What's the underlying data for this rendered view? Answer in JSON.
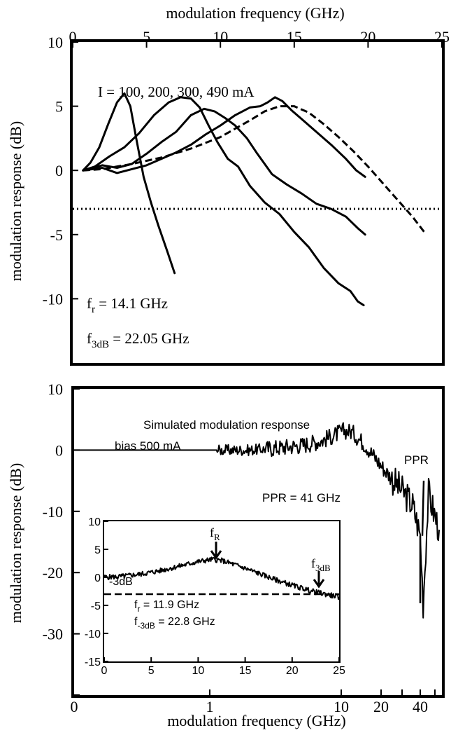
{
  "chart_data": [
    {
      "type": "line",
      "xlabel": "modulation frequency  (GHz)",
      "ylabel": "modulation response (dB)",
      "xlim": [
        0,
        25
      ],
      "ylim": [
        -15,
        10
      ],
      "x_ticks": [
        "0",
        "5",
        "10",
        "15",
        "20",
        "25"
      ],
      "y_ticks": [
        "10",
        "5",
        "0",
        "-5",
        "-10"
      ],
      "series_label": "I = 100, 200, 300, 490 mA",
      "annotations": {
        "fr_prefix": "f",
        "fr_sub": "r",
        "fr_value": " = 14.1 GHz",
        "f3db_prefix": "f",
        "f3db_sub": "3dB",
        "f3db_value": " = 22.05 GHz"
      },
      "reference_line_y": -3,
      "series": [
        {
          "style": "solid",
          "x": [
            0.7,
            1.2,
            1.8,
            2.4,
            3.0,
            3.5,
            3.9,
            4.3,
            4.8,
            5.3,
            5.8,
            6.4,
            6.9
          ],
          "y": [
            0,
            0.6,
            1.8,
            3.6,
            5.3,
            6.0,
            5.0,
            2.5,
            -0.5,
            -2.5,
            -4.3,
            -6.3,
            -8.0
          ]
        },
        {
          "style": "solid",
          "x": [
            0.7,
            1.5,
            2.5,
            3.5,
            4.5,
            5.5,
            6.5,
            7.3,
            8.0,
            8.6,
            9.2,
            9.8,
            10.5,
            11.2,
            12.0,
            13.0,
            14.0,
            15.0,
            16.0,
            17.0,
            18.0,
            18.8,
            19.3,
            19.7
          ],
          "y": [
            0,
            0.3,
            1.1,
            1.8,
            2.9,
            4.3,
            5.3,
            5.7,
            5.6,
            4.9,
            3.5,
            2.2,
            0.9,
            0.3,
            -1.2,
            -2.5,
            -3.4,
            -4.8,
            -6.0,
            -7.6,
            -8.8,
            -9.4,
            -10.2,
            -10.5
          ]
        },
        {
          "style": "solid",
          "x": [
            0.7,
            2.0,
            3.0,
            4.0,
            5.0,
            6.0,
            7.0,
            8.0,
            8.9,
            9.6,
            10.3,
            11.0,
            11.8,
            12.5,
            13.5,
            14.5,
            15.5,
            16.5,
            17.5,
            18.5,
            19.3,
            19.8
          ],
          "y": [
            0,
            0.4,
            0.2,
            0.5,
            1.3,
            2.2,
            3.0,
            4.3,
            4.8,
            4.6,
            4.1,
            3.5,
            2.5,
            1.3,
            -0.3,
            -1.1,
            -1.8,
            -2.6,
            -3.0,
            -3.6,
            -4.5,
            -5.0
          ]
        },
        {
          "style": "solid",
          "x": [
            0.7,
            2.0,
            3.0,
            4.0,
            5.0,
            6.0,
            7.0,
            8.0,
            9.0,
            10.0,
            11.0,
            12.0,
            12.7,
            13.2,
            13.7,
            14.2,
            14.8,
            15.5,
            16.5,
            17.5,
            18.5,
            19.2,
            19.8
          ],
          "y": [
            0,
            0.2,
            -0.2,
            0.1,
            0.4,
            0.9,
            1.4,
            2.0,
            2.8,
            3.5,
            4.3,
            4.9,
            5.0,
            5.3,
            5.7,
            5.4,
            4.7,
            4.0,
            3.0,
            2.0,
            0.9,
            0.0,
            -0.5
          ]
        },
        {
          "style": "dashed",
          "x": [
            0.7,
            2,
            4,
            6,
            8,
            10,
            12,
            13,
            14,
            15,
            16,
            17,
            18,
            19,
            20,
            21,
            22,
            23,
            23.8
          ],
          "y": [
            0,
            0.1,
            0.5,
            1.0,
            1.7,
            2.6,
            3.9,
            4.6,
            5.0,
            5.0,
            4.5,
            3.6,
            2.6,
            1.5,
            0.3,
            -1.0,
            -2.3,
            -3.6,
            -4.8
          ]
        }
      ]
    },
    {
      "type": "line",
      "xlabel": "modulation frequency  (GHz)",
      "ylabel": "modulation response (dB)",
      "x_scale": "log",
      "ylim": [
        -40,
        10
      ],
      "x_ticks": [
        "0",
        "1",
        "10",
        "20",
        "40"
      ],
      "y_ticks": [
        "10",
        "0",
        "-10",
        "-20",
        "-30"
      ],
      "texts": {
        "title": "Simulated modulation response",
        "bias": "bias 500 mA",
        "ppr_label": "PPR",
        "ppr_value": "PPR = 41 GHz"
      },
      "series": [
        {
          "style": "noisy",
          "x": [
            0.1,
            0.3,
            0.6,
            1.0,
            2.0,
            3.0,
            5.0,
            7.0,
            9.0,
            10.5,
            12.0,
            15.0,
            20.0,
            25.0,
            30.0,
            35.0,
            38.0,
            40.0,
            42.0,
            46.0,
            50.0,
            55.0
          ],
          "y": [
            0,
            0,
            0,
            0,
            0,
            0.3,
            0.8,
            1.5,
            2.5,
            3.2,
            3.0,
            1.0,
            -2.5,
            -5.0,
            -7.0,
            -9.0,
            -12.0,
            -14.0,
            -25.0,
            -7.0,
            -10.0,
            -13.0
          ]
        }
      ]
    },
    {
      "type": "line",
      "inset": true,
      "xlim": [
        0,
        25
      ],
      "ylim": [
        -15,
        10
      ],
      "x_ticks": [
        "0",
        "5",
        "10",
        "15",
        "20",
        "25"
      ],
      "y_ticks": [
        "10",
        "5",
        "0",
        "-5",
        "-10",
        "-15"
      ],
      "reference_line_y": -3,
      "reference_label": "-3dB",
      "annotations": {
        "fR_prefix": "f",
        "fR_sub": "R",
        "f3dB_prefix": "f",
        "f3dB_sub": "3dB",
        "fr_prefix": "f",
        "fr_sub": "r",
        "fr_value": " = 11.9 GHz",
        "fm3db_prefix": "f",
        "fm3db_sub": "-3dB",
        "fm3db_value": " = 22.8 GHz"
      },
      "series": [
        {
          "style": "noisy",
          "x": [
            0,
            2,
            4,
            6,
            8,
            10,
            11.5,
            12.5,
            14,
            16,
            18,
            20,
            22,
            23.5,
            25
          ],
          "y": [
            0,
            0.2,
            0.6,
            1.2,
            2.0,
            2.8,
            3.2,
            3.0,
            2.2,
            1.0,
            -0.3,
            -1.4,
            -2.4,
            -3.0,
            -3.5
          ]
        }
      ]
    }
  ]
}
